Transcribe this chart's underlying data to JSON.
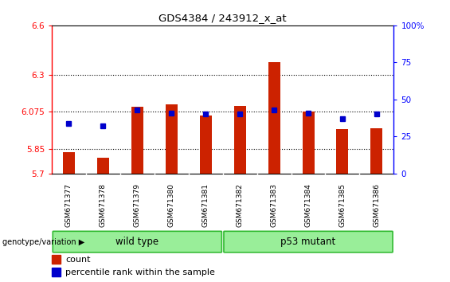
{
  "title": "GDS4384 / 243912_x_at",
  "samples": [
    "GSM671377",
    "GSM671378",
    "GSM671379",
    "GSM671380",
    "GSM671381",
    "GSM671382",
    "GSM671383",
    "GSM671384",
    "GSM671385",
    "GSM671386"
  ],
  "count_values": [
    5.83,
    5.795,
    6.105,
    6.12,
    6.05,
    6.11,
    6.375,
    6.075,
    5.97,
    5.975
  ],
  "percentile_values": [
    34,
    32,
    43,
    41,
    40,
    40,
    43,
    41,
    37,
    40
  ],
  "ylim_left": [
    5.7,
    6.6
  ],
  "ylim_right": [
    0,
    100
  ],
  "yticks_left": [
    5.7,
    5.85,
    6.075,
    6.3,
    6.6
  ],
  "yticks_right": [
    0,
    25,
    50,
    75,
    100
  ],
  "yticklabels_right": [
    "0",
    "25",
    "50",
    "75",
    "100%"
  ],
  "hlines": [
    5.85,
    6.075,
    6.3
  ],
  "bar_color": "#cc2200",
  "dot_color": "#0000cc",
  "wild_type_label": "wild type",
  "p53_mutant_label": "p53 mutant",
  "group_fill_light": "#99ee99",
  "group_fill_dark": "#33bb33",
  "legend_count_label": "count",
  "legend_percentile_label": "percentile rank within the sample",
  "genotype_label": "genotype/variation",
  "background_color": "#ffffff",
  "tick_area_bg": "#cccccc",
  "bar_width": 0.35
}
